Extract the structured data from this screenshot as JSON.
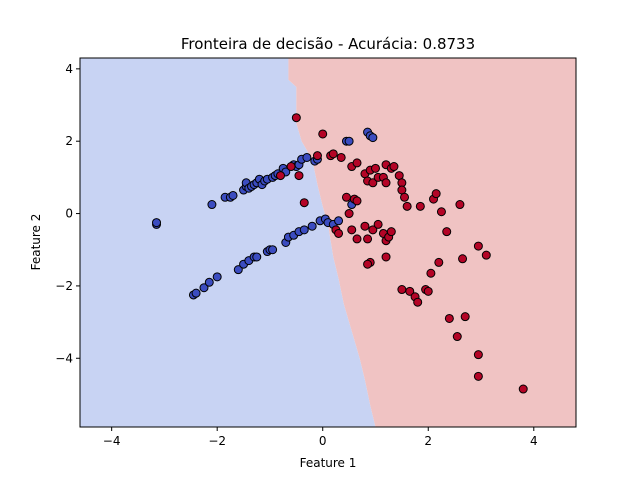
{
  "chart_data": {
    "type": "scatter",
    "title": "Fronteira de decisão - Acurácia: 0.8733",
    "xlabel": "Feature 1",
    "ylabel": "Feature 2",
    "xlim": [
      -4.6,
      4.8
    ],
    "ylim": [
      -5.9,
      4.3
    ],
    "xticks": [
      "−4",
      "−2",
      "0",
      "2",
      "4"
    ],
    "xtick_values": [
      -4,
      -2,
      0,
      2,
      4
    ],
    "yticks": [
      "−4",
      "−2",
      "0",
      "2",
      "4"
    ],
    "ytick_values": [
      -4,
      -2,
      0,
      2,
      4
    ],
    "grid": false,
    "regions": {
      "class0_color": "#c8d3f3",
      "class1_color": "#f0c3c3",
      "boundary": [
        [
          -0.65,
          4.3
        ],
        [
          -0.65,
          3.7
        ],
        [
          -0.5,
          3.5
        ],
        [
          -0.5,
          2.5
        ],
        [
          -0.4,
          2.0
        ],
        [
          -0.2,
          1.5
        ],
        [
          -0.1,
          0.8
        ],
        [
          0.0,
          0.2
        ],
        [
          0.1,
          -0.3
        ],
        [
          0.2,
          -1.2
        ],
        [
          0.3,
          -1.8
        ],
        [
          0.4,
          -2.5
        ],
        [
          0.5,
          -3.0
        ],
        [
          0.6,
          -3.5
        ],
        [
          0.7,
          -4.0
        ],
        [
          0.8,
          -4.6
        ],
        [
          0.9,
          -5.3
        ],
        [
          1.0,
          -5.9
        ]
      ]
    },
    "series": [
      {
        "color": "#3b4cc0",
        "points": [
          [
            -3.15,
            -0.3
          ],
          [
            -3.15,
            -0.25
          ],
          [
            -2.1,
            0.25
          ],
          [
            -1.85,
            0.45
          ],
          [
            -1.75,
            0.45
          ],
          [
            -1.7,
            0.5
          ],
          [
            -1.5,
            0.65
          ],
          [
            -1.45,
            0.75
          ],
          [
            -1.45,
            0.85
          ],
          [
            -1.4,
            0.7
          ],
          [
            -1.35,
            0.75
          ],
          [
            -1.3,
            0.8
          ],
          [
            -1.25,
            0.85
          ],
          [
            -1.2,
            0.95
          ],
          [
            -1.15,
            0.8
          ],
          [
            -1.1,
            0.9
          ],
          [
            -1.05,
            0.95
          ],
          [
            -0.95,
            1.0
          ],
          [
            -0.9,
            1.05
          ],
          [
            -0.85,
            1.1
          ],
          [
            -0.75,
            1.25
          ],
          [
            -0.7,
            1.15
          ],
          [
            -0.55,
            1.35
          ],
          [
            -0.5,
            1.3
          ],
          [
            -0.45,
            1.35
          ],
          [
            -0.4,
            1.5
          ],
          [
            -0.3,
            1.55
          ],
          [
            -0.15,
            1.45
          ],
          [
            -0.1,
            1.5
          ],
          [
            0.45,
            2.0
          ],
          [
            0.5,
            2.0
          ],
          [
            0.85,
            2.25
          ],
          [
            0.9,
            2.15
          ],
          [
            0.95,
            2.1
          ],
          [
            -2.45,
            -2.25
          ],
          [
            -2.4,
            -2.2
          ],
          [
            -2.25,
            -2.05
          ],
          [
            -2.15,
            -1.9
          ],
          [
            -2.0,
            -1.75
          ],
          [
            -1.6,
            -1.55
          ],
          [
            -1.5,
            -1.4
          ],
          [
            -1.4,
            -1.3
          ],
          [
            -1.3,
            -1.2
          ],
          [
            -1.25,
            -1.2
          ],
          [
            -1.05,
            -1.05
          ],
          [
            -1.0,
            -1.0
          ],
          [
            -0.95,
            -1.0
          ],
          [
            -0.7,
            -0.8
          ],
          [
            -0.65,
            -0.65
          ],
          [
            -0.55,
            -0.6
          ],
          [
            -0.45,
            -0.5
          ],
          [
            -0.35,
            -0.45
          ],
          [
            -0.2,
            -0.35
          ],
          [
            -0.05,
            -0.2
          ],
          [
            0.05,
            -0.15
          ],
          [
            0.1,
            -0.25
          ],
          [
            0.2,
            -0.3
          ],
          [
            0.3,
            -0.2
          ],
          [
            0.55,
            0.25
          ]
        ]
      },
      {
        "color": "#b40426",
        "points": [
          [
            -0.5,
            2.65
          ],
          [
            -0.8,
            1.05
          ],
          [
            -0.45,
            1.05
          ],
          [
            -0.35,
            0.3
          ],
          [
            -0.6,
            1.3
          ],
          [
            -0.1,
            1.6
          ],
          [
            0.0,
            2.2
          ],
          [
            0.15,
            1.6
          ],
          [
            0.2,
            1.65
          ],
          [
            0.35,
            1.55
          ],
          [
            0.55,
            1.3
          ],
          [
            0.65,
            1.4
          ],
          [
            0.8,
            1.1
          ],
          [
            0.85,
            0.9
          ],
          [
            0.9,
            1.2
          ],
          [
            0.95,
            0.85
          ],
          [
            1.0,
            1.25
          ],
          [
            1.05,
            1.0
          ],
          [
            1.15,
            1.0
          ],
          [
            1.2,
            1.35
          ],
          [
            1.2,
            0.85
          ],
          [
            1.3,
            1.25
          ],
          [
            1.35,
            1.3
          ],
          [
            1.45,
            1.05
          ],
          [
            1.5,
            0.85
          ],
          [
            1.5,
            0.65
          ],
          [
            1.55,
            0.45
          ],
          [
            1.6,
            0.2
          ],
          [
            0.45,
            0.45
          ],
          [
            0.6,
            0.4
          ],
          [
            0.65,
            0.35
          ],
          [
            0.5,
            0.0
          ],
          [
            0.25,
            -0.45
          ],
          [
            0.55,
            -0.45
          ],
          [
            0.3,
            -0.55
          ],
          [
            0.8,
            -0.35
          ],
          [
            0.85,
            -0.7
          ],
          [
            0.95,
            -0.45
          ],
          [
            1.05,
            -0.3
          ],
          [
            1.15,
            -0.55
          ],
          [
            1.2,
            -0.75
          ],
          [
            1.25,
            -0.65
          ],
          [
            1.3,
            -0.5
          ],
          [
            0.65,
            -0.7
          ],
          [
            0.9,
            -1.35
          ],
          [
            0.85,
            -1.4
          ],
          [
            1.2,
            -1.2
          ],
          [
            1.5,
            -2.1
          ],
          [
            1.65,
            -2.15
          ],
          [
            1.75,
            -2.3
          ],
          [
            1.8,
            -2.45
          ],
          [
            1.95,
            -2.1
          ],
          [
            2.0,
            -2.15
          ],
          [
            2.05,
            -1.65
          ],
          [
            2.2,
            -1.35
          ],
          [
            1.85,
            0.2
          ],
          [
            2.1,
            0.4
          ],
          [
            2.15,
            0.55
          ],
          [
            2.25,
            0.05
          ],
          [
            2.35,
            -0.5
          ],
          [
            2.6,
            0.25
          ],
          [
            2.65,
            -1.25
          ],
          [
            2.95,
            -0.9
          ],
          [
            3.1,
            -1.15
          ],
          [
            2.4,
            -2.9
          ],
          [
            2.55,
            -3.4
          ],
          [
            2.7,
            -2.85
          ],
          [
            2.95,
            -3.9
          ],
          [
            2.95,
            -4.5
          ],
          [
            3.8,
            -4.85
          ]
        ]
      }
    ]
  }
}
